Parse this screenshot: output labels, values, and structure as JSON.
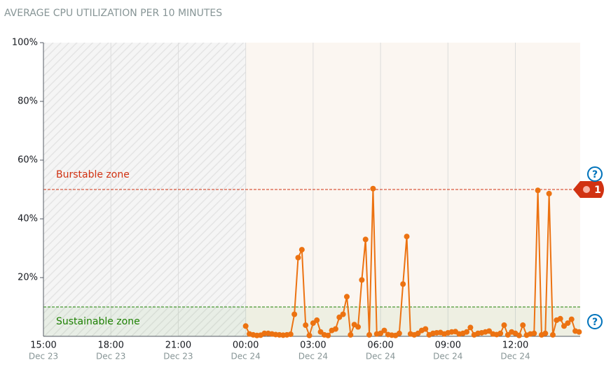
{
  "chart_data": {
    "type": "line",
    "title": "AVERAGE CPU UTILIZATION PER 10 MINUTES",
    "x": [
      0,
      10,
      20,
      30,
      40,
      50,
      60,
      70,
      80,
      90,
      100,
      110,
      120,
      130,
      140,
      150,
      160,
      170,
      180,
      190,
      200,
      210,
      220,
      230,
      240,
      250,
      260,
      270,
      280,
      290,
      300,
      310,
      320,
      330,
      340,
      350,
      360,
      370,
      380,
      390,
      400,
      410,
      420,
      430,
      440,
      450,
      460,
      470,
      480,
      490,
      500,
      510,
      520,
      530,
      540,
      550,
      560,
      570,
      580,
      590,
      600,
      610,
      620,
      630,
      640,
      650,
      660,
      670,
      680,
      690,
      700,
      710,
      720,
      730,
      740,
      750,
      760,
      770,
      780,
      790,
      800,
      810,
      820,
      830,
      840,
      850,
      860,
      870,
      880,
      890
    ],
    "series": [
      {
        "color": "#ec7211",
        "values": [
          3.5,
          0.8,
          0.5,
          0.3,
          0.4,
          1,
          1,
          0.8,
          0.6,
          0.5,
          0.4,
          0.5,
          0.7,
          7.5,
          26.8,
          29.5,
          3.8,
          0.3,
          4.5,
          5.5,
          1.5,
          0.5,
          0.3,
          2,
          2.5,
          6.5,
          7.5,
          13.5,
          0.5,
          4,
          3.2,
          19.2,
          33,
          0.5,
          50.3,
          0.8,
          1,
          2,
          0.6,
          0.4,
          0.3,
          1,
          17.8,
          34,
          0.8,
          0.5,
          1,
          2,
          2.5,
          0.5,
          1,
          1.2,
          1.3,
          0.8,
          1.2,
          1.5,
          1.6,
          0.8,
          1,
          1.5,
          3,
          0.5,
          1,
          1.2,
          1.5,
          1.8,
          0.8,
          0.6,
          1,
          3.8,
          0.5,
          1.5,
          1,
          0.3,
          3.8,
          0.4,
          0.8,
          1,
          49.7,
          0.5,
          1,
          48.6,
          0.5,
          5.5,
          6,
          3.5,
          4.5,
          5.8,
          1.8,
          1.5
        ]
      }
    ],
    "xlim": [
      -540,
      893
    ],
    "xticks": [
      {
        "value": -540,
        "label": "15:00",
        "date": "Dec 23"
      },
      {
        "value": -360,
        "label": "18:00",
        "date": "Dec 23"
      },
      {
        "value": -180,
        "label": "21:00",
        "date": "Dec 23"
      },
      {
        "value": 0,
        "label": "00:00",
        "date": "Dec 24"
      },
      {
        "value": 180,
        "label": "03:00",
        "date": "Dec 24"
      },
      {
        "value": 360,
        "label": "06:00",
        "date": "Dec 24"
      },
      {
        "value": 540,
        "label": "09:00",
        "date": "Dec 24"
      },
      {
        "value": 720,
        "label": "12:00",
        "date": "Dec 24"
      }
    ],
    "ylim": [
      0,
      100
    ],
    "yticks": [
      {
        "value": 20,
        "label": "20%"
      },
      {
        "value": 40,
        "label": "40%"
      },
      {
        "value": 60,
        "label": "60%"
      },
      {
        "value": 80,
        "label": "80%"
      },
      {
        "value": 100,
        "label": "100%"
      }
    ],
    "thresholds": [
      {
        "name": "Burstable zone",
        "value": 50,
        "color": "#d13212",
        "badge": "1"
      },
      {
        "name": "Sustainable zone",
        "value": 10,
        "color": "#1d8102"
      }
    ]
  }
}
